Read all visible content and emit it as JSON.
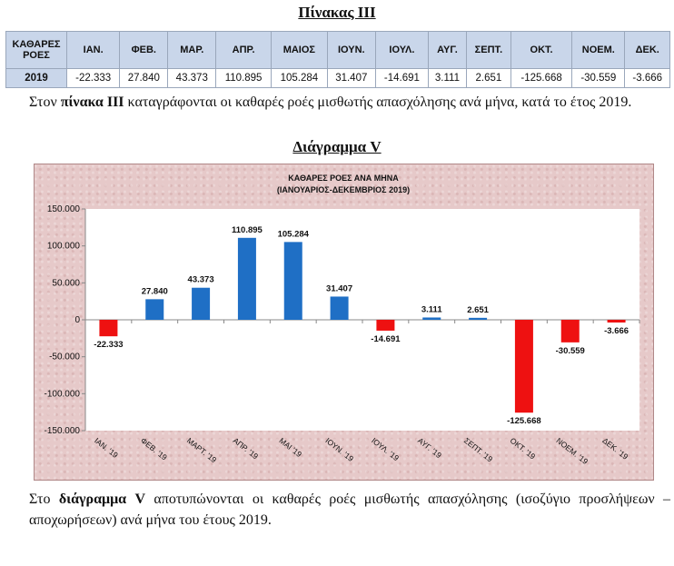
{
  "table_title": "Πίνακας ΙΙΙ",
  "table": {
    "row_header": "ΚΑΘΑΡΕΣ ΡΟΕΣ",
    "months": [
      "ΙΑΝ.",
      "ΦΕΒ.",
      "ΜΑΡ.",
      "ΑΠΡ.",
      "ΜΑΙΟΣ",
      "ΙΟΥΝ.",
      "ΙΟΥΛ.",
      "ΑΥΓ.",
      "ΣΕΠΤ.",
      "ΟΚΤ.",
      "ΝΟΕΜ.",
      "ΔΕΚ."
    ],
    "year": "2019",
    "values": [
      "-22.333",
      "27.840",
      "43.373",
      "110.895",
      "105.284",
      "31.407",
      "-14.691",
      "3.111",
      "2.651",
      "-125.668",
      "-30.559",
      "-3.666"
    ]
  },
  "paragraph1": {
    "pre": "Στον ",
    "bold": "πίνακα ΙΙΙ",
    "post": " καταγράφονται οι καθαρές ροές μισθωτής απασχόλησης ανά μήνα, κατά το έτος 2019."
  },
  "diagram_title": "Διάγραμμα V",
  "paragraph2": {
    "pre": "Στο  ",
    "bold": "διάγραμμα V",
    "post": " αποτυπώνονται οι καθαρές ροές μισθωτής απασχόλησης (ισοζύγιο προσλήψεων – αποχωρήσεων) ανά μήνα του έτους 2019."
  },
  "colors": {
    "positive": "#1f6fc5",
    "negative": "#ee1111",
    "background": "#e6c9c9",
    "table_header": "#c9d6ea"
  },
  "chart_data": {
    "type": "bar",
    "title": "ΚΑΘΑΡΕΣ ΡΟΕΣ ΑΝΑ ΜΗΝΑ",
    "subtitle": "(ΙΑΝΟΥΑΡΙΟΣ-ΔΕΚΕΜΒΡΙΟΣ 2019)",
    "categories": [
      "ΙΑΝ. '19",
      "ΦΕΒ. '19",
      "ΜΑΡΤ. '19",
      "ΑΠΡ. '19",
      "ΜΑΙ '19",
      "ΙΟΥΝ. '19",
      "ΙΟΥΛ. '19",
      "ΑΥΓ. '19",
      "ΣΕΠΤ. '19",
      "ΟΚΤ. '19",
      "ΝΟΕΜ. '19",
      "ΔΕΚ. '19"
    ],
    "values": [
      -22333,
      27840,
      43373,
      110895,
      105284,
      31407,
      -14691,
      3111,
      2651,
      -125668,
      -30559,
      -3666
    ],
    "value_labels": [
      "-22.333",
      "27.840",
      "43.373",
      "110.895",
      "105.284",
      "31.407",
      "-14.691",
      "3.111",
      "2.651",
      "-125.668",
      "-30.559",
      "-3.666"
    ],
    "ylim": [
      -150000,
      150000
    ],
    "yticks": [
      150000,
      100000,
      50000,
      0,
      -50000,
      -100000,
      -150000
    ],
    "ytick_labels": [
      "150.000",
      "100.000",
      "50.000",
      "0",
      "-50.000",
      "-100.000",
      "-150.000"
    ],
    "xlabel": "",
    "ylabel": "",
    "legend": "none",
    "grid": false
  }
}
